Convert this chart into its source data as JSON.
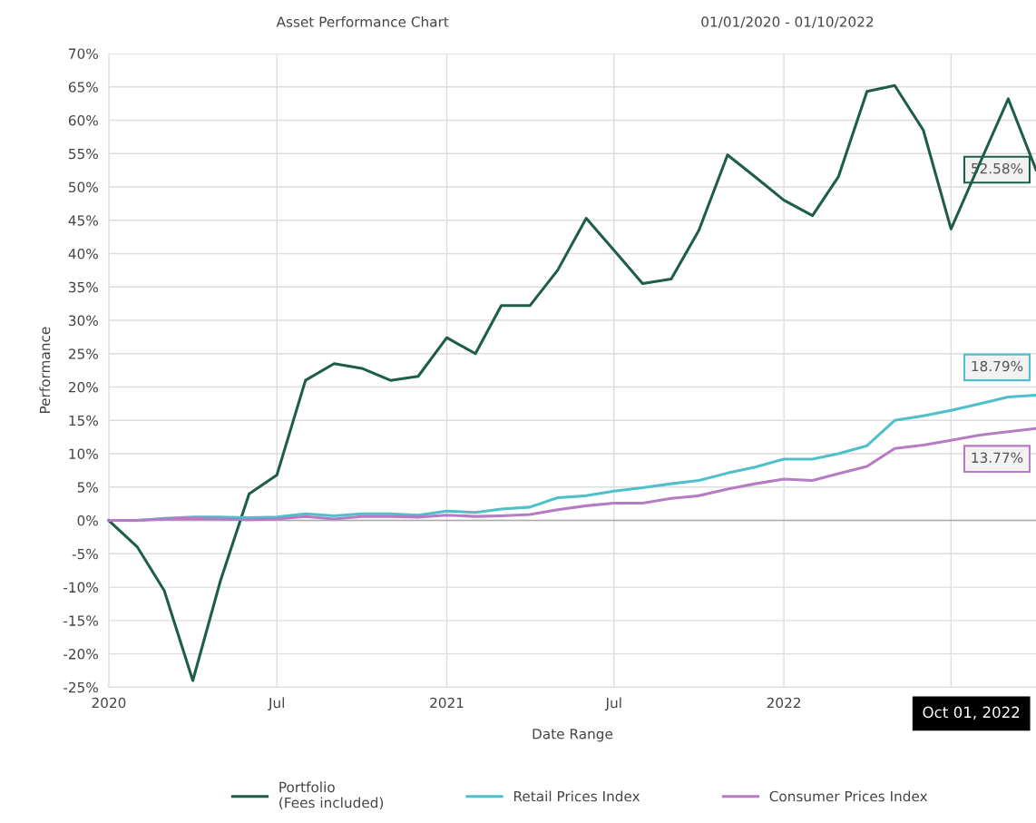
{
  "chart_data": {
    "type": "line",
    "title": "Asset Performance Chart",
    "subtitle": "01/01/2020 - 01/10/2022",
    "xlabel": "Date Range",
    "ylabel": "Performance",
    "x": [
      "2020-01",
      "2020-02",
      "2020-03",
      "2020-04",
      "2020-05",
      "2020-06",
      "2020-07",
      "2020-08",
      "2020-09",
      "2020-10",
      "2020-11",
      "2020-12",
      "2021-01",
      "2021-02",
      "2021-03",
      "2021-04",
      "2021-05",
      "2021-06",
      "2021-07",
      "2021-08",
      "2021-09",
      "2021-10",
      "2021-11",
      "2021-12",
      "2022-01",
      "2022-02",
      "2022-03",
      "2022-04",
      "2022-05",
      "2022-06",
      "2022-07",
      "2022-08",
      "2022-09",
      "2022-10"
    ],
    "series": [
      {
        "name": "Portfolio\n(Fees included)",
        "color": "#1e5e47",
        "values": [
          0,
          -4,
          -10.5,
          -24,
          -9,
          4,
          6.8,
          21,
          23.5,
          22.8,
          21,
          21.6,
          27.4,
          25,
          32.2,
          32.2,
          37.5,
          45.3,
          40.5,
          35.5,
          36.2,
          43.5,
          54.8,
          51.5,
          48,
          45.7,
          51.5,
          64.3,
          65.2,
          58.5,
          43.7,
          53.5,
          63.2,
          52.58
        ],
        "value_labels": [
          null,
          null,
          null,
          null,
          null,
          null,
          null,
          null,
          null,
          null,
          null,
          null,
          null,
          null,
          null,
          null,
          null,
          null,
          null,
          null,
          null,
          null,
          null,
          null,
          null,
          null,
          null,
          null,
          null,
          null,
          null,
          null,
          null,
          "52.58%"
        ]
      },
      {
        "name": "Retail Prices Index",
        "color": "#4ebfcb",
        "values": [
          0,
          0,
          0.3,
          0.5,
          0.5,
          0.4,
          0.5,
          1.0,
          0.7,
          1.0,
          1.0,
          0.8,
          1.4,
          1.2,
          1.7,
          2.0,
          3.4,
          3.7,
          4.4,
          4.9,
          5.5,
          6.0,
          7.1,
          8.0,
          9.2,
          9.2,
          10.0,
          11.2,
          15.0,
          15.7,
          16.5,
          17.5,
          18.5,
          18.79
        ],
        "value_labels": [
          null,
          null,
          null,
          null,
          null,
          null,
          null,
          null,
          null,
          null,
          null,
          null,
          null,
          null,
          null,
          null,
          null,
          null,
          null,
          null,
          null,
          null,
          null,
          null,
          null,
          null,
          null,
          null,
          null,
          null,
          null,
          null,
          null,
          "18.79%"
        ]
      },
      {
        "name": "Consumer Prices Index",
        "color": "#b57cc4",
        "values": [
          0,
          0,
          0.2,
          0.3,
          0.2,
          0.1,
          0.2,
          0.6,
          0.2,
          0.6,
          0.6,
          0.5,
          0.8,
          0.6,
          0.7,
          0.9,
          1.6,
          2.2,
          2.6,
          2.6,
          3.3,
          3.7,
          4.7,
          5.5,
          6.2,
          6.0,
          7.0,
          8.1,
          10.8,
          11.3,
          12.0,
          12.8,
          13.3,
          13.77
        ],
        "value_labels": [
          null,
          null,
          null,
          null,
          null,
          null,
          null,
          null,
          null,
          null,
          null,
          null,
          null,
          null,
          null,
          null,
          null,
          null,
          null,
          null,
          null,
          null,
          null,
          null,
          null,
          null,
          null,
          null,
          null,
          null,
          null,
          null,
          null,
          "13.77%"
        ]
      }
    ],
    "xlim": [
      "2020-01-01",
      "2022-10-01"
    ],
    "xticks": [
      {
        "value": "2020-01-01",
        "label": "2020"
      },
      {
        "value": "2020-07-01",
        "label": "Jul"
      },
      {
        "value": "2021-01-01",
        "label": "2021"
      },
      {
        "value": "2021-07-01",
        "label": "Jul"
      },
      {
        "value": "2022-01-01",
        "label": "2022"
      },
      {
        "value": "2022-07-01",
        "label": null
      }
    ],
    "ylim": [
      -25,
      70
    ],
    "yticks": [
      {
        "value": -25,
        "label": "-25%"
      },
      {
        "value": -20,
        "label": "-20%"
      },
      {
        "value": -15,
        "label": "-15%"
      },
      {
        "value": -10,
        "label": "-10%"
      },
      {
        "value": -5,
        "label": "-5%"
      },
      {
        "value": 0,
        "label": "0%"
      },
      {
        "value": 5,
        "label": "5%"
      },
      {
        "value": 10,
        "label": "10%"
      },
      {
        "value": 15,
        "label": "15%"
      },
      {
        "value": 20,
        "label": "20%"
      },
      {
        "value": 25,
        "label": "25%"
      },
      {
        "value": 30,
        "label": "30%"
      },
      {
        "value": 35,
        "label": "35%"
      },
      {
        "value": 40,
        "label": "40%"
      },
      {
        "value": 45,
        "label": "45%"
      },
      {
        "value": 50,
        "label": "50%"
      },
      {
        "value": 55,
        "label": "55%"
      },
      {
        "value": 60,
        "label": "60%"
      },
      {
        "value": 65,
        "label": "65%"
      },
      {
        "value": 70,
        "label": "70%"
      }
    ],
    "ref_lines": [
      {
        "axis": "y",
        "value": 0,
        "color": "#aaaaaa"
      }
    ],
    "annotations": [
      "Oct 01, 2022"
    ],
    "grid": true,
    "legend": "bottom",
    "marker": "none",
    "line_style": "solid"
  }
}
